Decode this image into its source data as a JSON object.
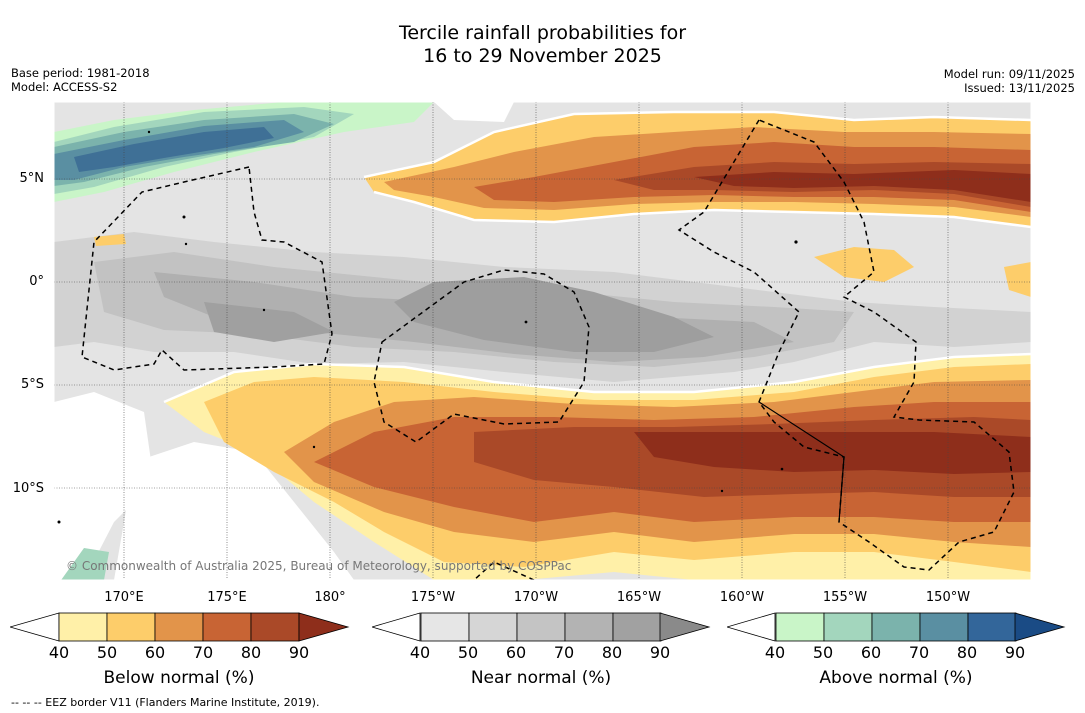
{
  "title": {
    "line1": "Tercile rainfall probabilities for",
    "line2": "16 to 29 November 2025"
  },
  "meta": {
    "base_period": "Base period: 1981-2018",
    "model": "Model: ACCESS-S2",
    "model_run": "Model run: 09/11/2025",
    "issued": "Issued: 13/11/2025"
  },
  "map": {
    "copyright": "© Commonwealth of Australia 2025, Bureau of Meteorology, supported by COSPPac",
    "lat_labels": [
      "5°N",
      "0°",
      "5°S",
      "10°S"
    ],
    "lon_labels": [
      "170°E",
      "175°E",
      "180°",
      "175°W",
      "170°W",
      "165°W",
      "160°W",
      "155°W",
      "150°W"
    ]
  },
  "legend": {
    "below": {
      "title": "Below normal (%)",
      "ticks": [
        "40",
        "50",
        "60",
        "70",
        "80",
        "90"
      ],
      "colors": [
        "#fff0a8",
        "#fdcd6a",
        "#e2944a",
        "#c86434",
        "#aa4928",
        "#8e2e1b"
      ]
    },
    "near": {
      "title": "Near normal (%)",
      "ticks": [
        "40",
        "50",
        "60",
        "70",
        "80",
        "90"
      ],
      "colors": [
        "#e6e6e6",
        "#d6d6d6",
        "#c4c4c4",
        "#b3b3b3",
        "#a1a1a1",
        "#8a8a8a"
      ]
    },
    "above": {
      "title": "Above normal (%)",
      "ticks": [
        "40",
        "50",
        "60",
        "70",
        "80",
        "90"
      ],
      "colors": [
        "#c9f5c8",
        "#a3d6bd",
        "#7bb3ac",
        "#5a8fa2",
        "#33669a",
        "#1a4b85"
      ]
    }
  },
  "footer": "--  --  -- EEZ border V11 (Flanders Marine Institute, 2019)."
}
